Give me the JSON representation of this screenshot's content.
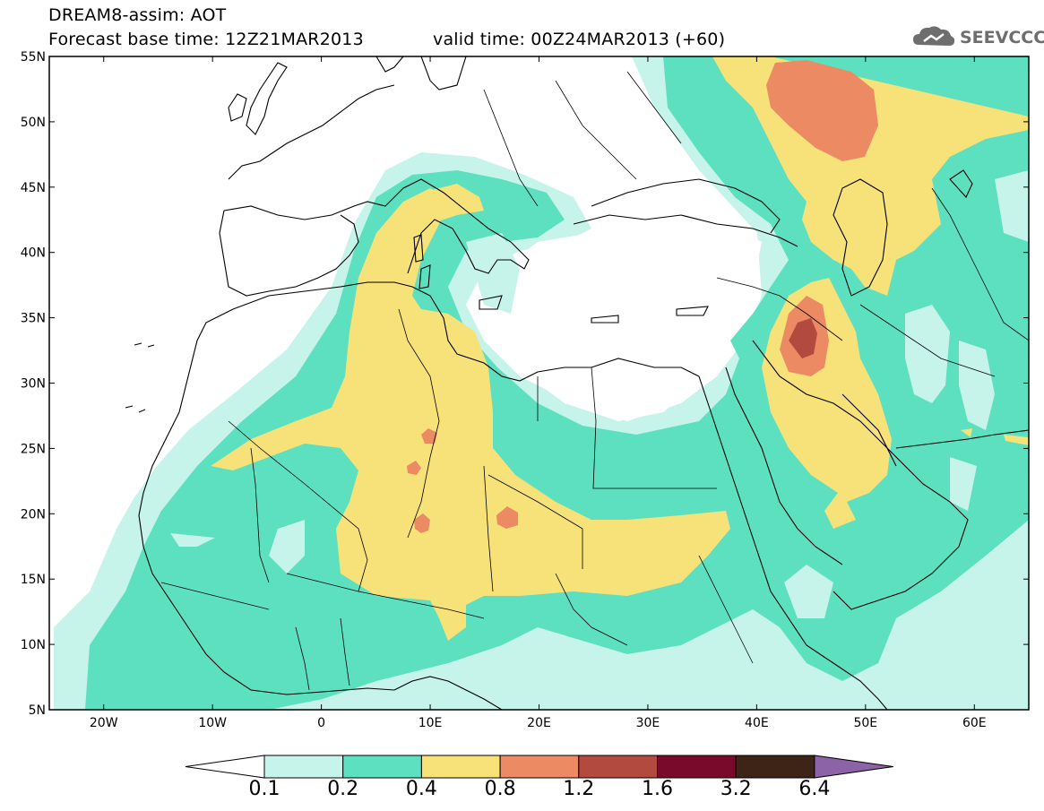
{
  "header": {
    "line1": "DREAM8-assim: AOT",
    "line2": "Forecast base time: 12Z21MAR2013",
    "line3": "valid time: 00Z24MAR2013 (+60)"
  },
  "logo": {
    "text": "SEEVCCC",
    "icon": "cloud-icon"
  },
  "map": {
    "lat_labels": [
      "55N",
      "50N",
      "45N",
      "40N",
      "35N",
      "30N",
      "25N",
      "20N",
      "15N",
      "10N",
      "5N"
    ],
    "lon_labels": [
      "20W",
      "10W",
      "0",
      "10E",
      "20E",
      "30E",
      "40E",
      "50E",
      "60E"
    ],
    "lat_range": [
      5,
      55
    ],
    "lon_range": [
      -25,
      65
    ]
  },
  "colorbar": {
    "labels": [
      "0.1",
      "0.2",
      "0.4",
      "0.8",
      "1.2",
      "1.6",
      "3.2",
      "6.4"
    ],
    "colors": [
      "#ffffff",
      "#c6f3ea",
      "#5de0bf",
      "#f7e27a",
      "#ec8a63",
      "#b24a3f",
      "#7a0a2c",
      "#3d2416",
      "#8d63a8"
    ]
  }
}
